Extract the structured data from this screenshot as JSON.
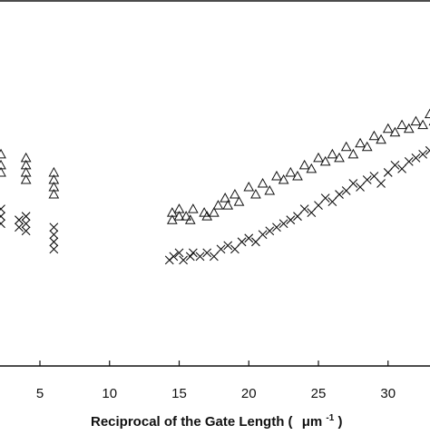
{
  "chart_data": {
    "type": "scatter",
    "title": "",
    "xlabel_main": "Reciprocal of the Gate Length (",
    "xlabel_unit": "μm",
    "xlabel_exp": "-1",
    "xlabel_close": ")",
    "ylabel": "",
    "xlim": [
      2,
      33.5
    ],
    "ylim": [
      0,
      1
    ],
    "x_ticks": [
      5,
      10,
      15,
      20,
      25,
      30
    ],
    "x_tick_labels": [
      "5",
      "10",
      "15",
      "20",
      "25",
      "30"
    ],
    "grid": false,
    "legend": "none",
    "series": [
      {
        "marker": "triangle",
        "points": [
          [
            2.2,
            0.58
          ],
          [
            2.2,
            0.55
          ],
          [
            2.2,
            0.53
          ],
          [
            4.0,
            0.57
          ],
          [
            4.0,
            0.55
          ],
          [
            4.0,
            0.53
          ],
          [
            4.0,
            0.51
          ],
          [
            6.0,
            0.53
          ],
          [
            6.0,
            0.51
          ],
          [
            6.0,
            0.49
          ],
          [
            6.0,
            0.47
          ],
          [
            14.5,
            0.42
          ],
          [
            14.5,
            0.4
          ],
          [
            15.0,
            0.43
          ],
          [
            15.0,
            0.41
          ],
          [
            15.5,
            0.41
          ],
          [
            15.8,
            0.4
          ],
          [
            16.0,
            0.43
          ],
          [
            16.8,
            0.42
          ],
          [
            17.0,
            0.41
          ],
          [
            17.5,
            0.42
          ],
          [
            17.8,
            0.44
          ],
          [
            18.3,
            0.46
          ],
          [
            18.5,
            0.44
          ],
          [
            19.0,
            0.47
          ],
          [
            19.3,
            0.45
          ],
          [
            20.0,
            0.49
          ],
          [
            20.5,
            0.47
          ],
          [
            21.0,
            0.5
          ],
          [
            21.5,
            0.48
          ],
          [
            22.0,
            0.52
          ],
          [
            22.5,
            0.51
          ],
          [
            23.0,
            0.53
          ],
          [
            23.5,
            0.52
          ],
          [
            24.0,
            0.55
          ],
          [
            24.5,
            0.54
          ],
          [
            25.0,
            0.57
          ],
          [
            25.5,
            0.56
          ],
          [
            26.0,
            0.58
          ],
          [
            26.5,
            0.57
          ],
          [
            27.0,
            0.6
          ],
          [
            27.5,
            0.58
          ],
          [
            28.0,
            0.61
          ],
          [
            28.5,
            0.6
          ],
          [
            29.0,
            0.63
          ],
          [
            29.5,
            0.62
          ],
          [
            30.0,
            0.65
          ],
          [
            30.5,
            0.64
          ],
          [
            31.0,
            0.66
          ],
          [
            31.5,
            0.65
          ],
          [
            32.0,
            0.67
          ],
          [
            32.5,
            0.66
          ],
          [
            33.0,
            0.69
          ],
          [
            33.3,
            0.67
          ]
        ]
      },
      {
        "marker": "cross",
        "points": [
          [
            2.2,
            0.43
          ],
          [
            2.2,
            0.41
          ],
          [
            2.2,
            0.39
          ],
          [
            3.5,
            0.4
          ],
          [
            3.5,
            0.38
          ],
          [
            4.0,
            0.41
          ],
          [
            4.0,
            0.39
          ],
          [
            4.0,
            0.37
          ],
          [
            6.0,
            0.38
          ],
          [
            6.0,
            0.36
          ],
          [
            6.0,
            0.34
          ],
          [
            6.0,
            0.32
          ],
          [
            14.3,
            0.29
          ],
          [
            14.6,
            0.3
          ],
          [
            15.0,
            0.31
          ],
          [
            15.3,
            0.29
          ],
          [
            15.8,
            0.3
          ],
          [
            16.0,
            0.31
          ],
          [
            16.5,
            0.3
          ],
          [
            17.0,
            0.31
          ],
          [
            17.5,
            0.3
          ],
          [
            18.0,
            0.32
          ],
          [
            18.5,
            0.33
          ],
          [
            19.0,
            0.32
          ],
          [
            19.5,
            0.34
          ],
          [
            20.0,
            0.35
          ],
          [
            20.5,
            0.34
          ],
          [
            21.0,
            0.36
          ],
          [
            21.5,
            0.37
          ],
          [
            22.0,
            0.38
          ],
          [
            22.5,
            0.39
          ],
          [
            23.0,
            0.4
          ],
          [
            23.5,
            0.41
          ],
          [
            24.0,
            0.43
          ],
          [
            24.5,
            0.42
          ],
          [
            25.0,
            0.44
          ],
          [
            25.5,
            0.46
          ],
          [
            26.0,
            0.45
          ],
          [
            26.5,
            0.47
          ],
          [
            27.0,
            0.48
          ],
          [
            27.5,
            0.5
          ],
          [
            28.0,
            0.49
          ],
          [
            28.5,
            0.51
          ],
          [
            29.0,
            0.52
          ],
          [
            29.5,
            0.5
          ],
          [
            30.0,
            0.53
          ],
          [
            30.5,
            0.55
          ],
          [
            31.0,
            0.54
          ],
          [
            31.5,
            0.56
          ],
          [
            32.0,
            0.57
          ],
          [
            32.5,
            0.58
          ],
          [
            33.0,
            0.59
          ]
        ]
      }
    ]
  }
}
